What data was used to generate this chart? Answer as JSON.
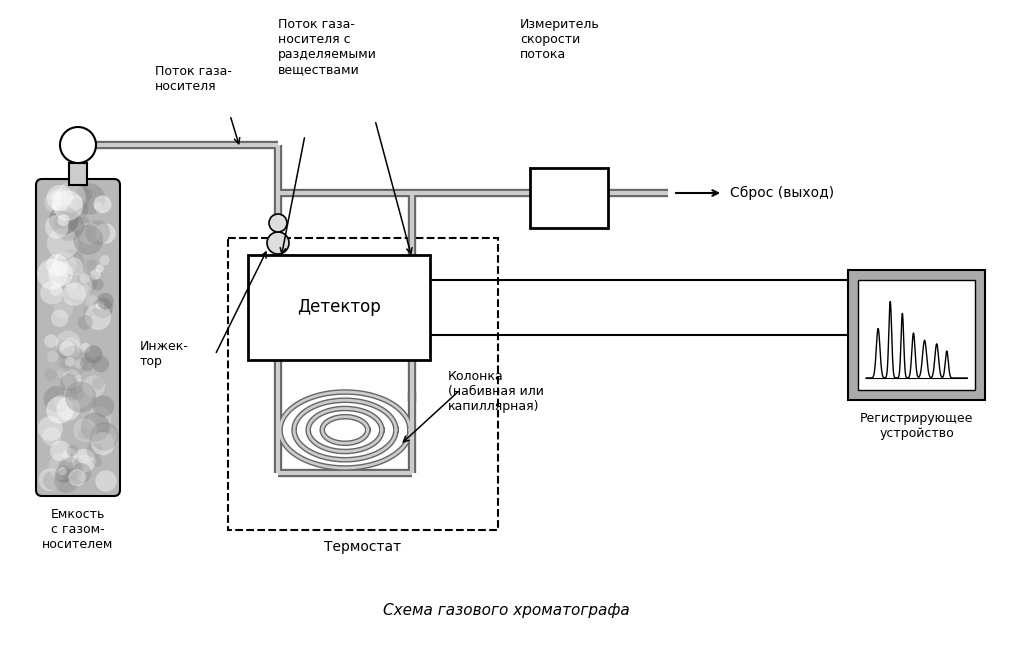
{
  "title": "Схема газового хроматографа",
  "bg_color": "#ffffff",
  "text_color": "#000000",
  "labels": {
    "carrier_gas": "Поток газа-\nносителя",
    "carrier_gas_with_substances": "Поток газа-\nносителя с\nразделяемыми\nвеществами",
    "flow_meter": "Измеритель\nскорости\nпотока",
    "discharge": "Сброс (выход)",
    "detector": "Детектор",
    "injector": "Инжек-\nтор",
    "thermostat": "Термостат",
    "column": "Колонка\n(набивная или\nкапиллярная)",
    "recorder": "Регистрирующее\nустройство",
    "tank": "Емкость\nс газом-\nносителем"
  },
  "pipe_outer": "#666666",
  "pipe_inner": "#cccccc",
  "pipe_lw_outer": 6,
  "pipe_lw_inner": 3
}
